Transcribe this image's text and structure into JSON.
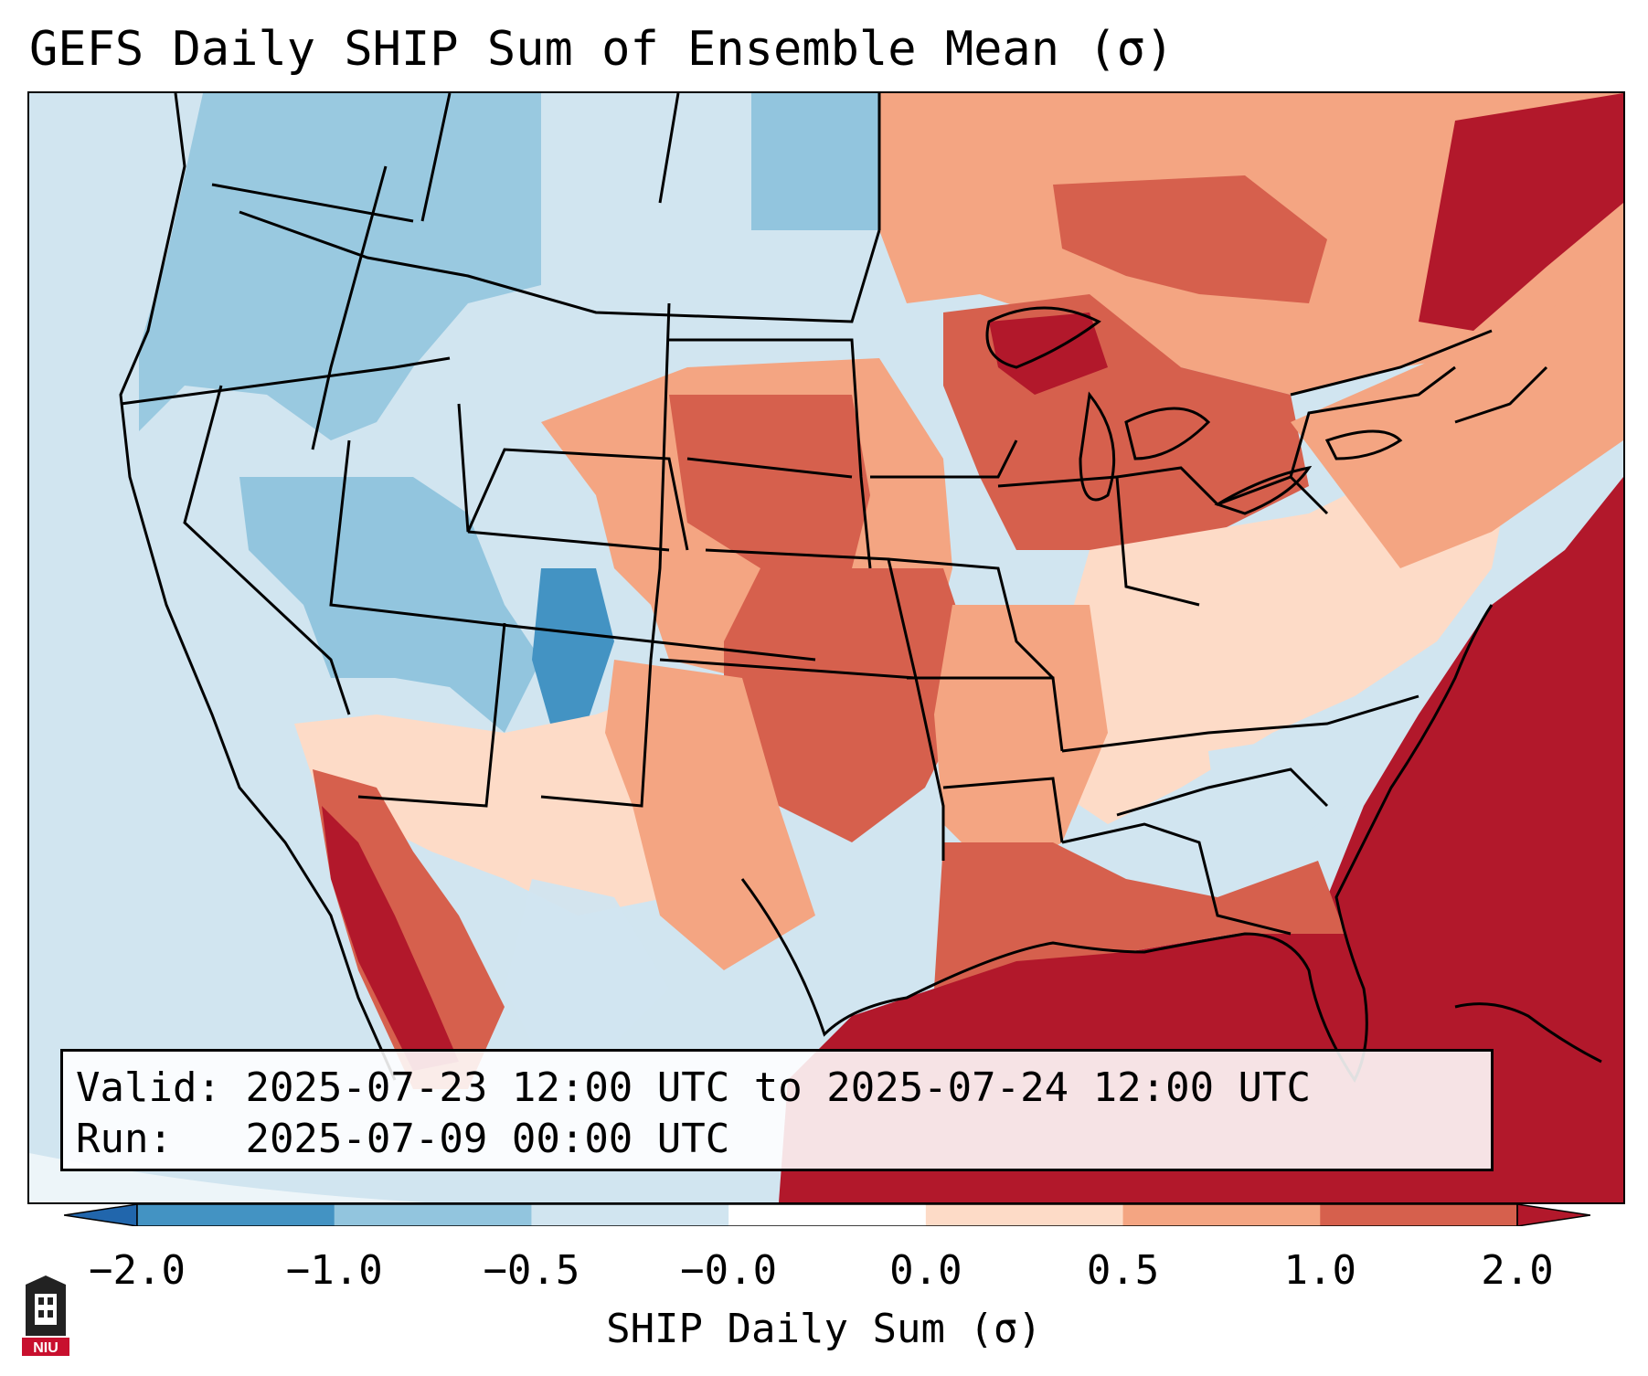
{
  "title": "GEFS Daily SHIP Sum of Ensemble Mean (σ)",
  "info": {
    "valid_label": "Valid:",
    "valid_value": "2025-07-23 12:00 UTC to 2025-07-24 12:00 UTC",
    "run_label": "Run:",
    "run_value": "2025-07-09 00:00 UTC"
  },
  "colorbar": {
    "label": "SHIP Daily Sum (σ)",
    "ticks": [
      "−2.0",
      "−1.0",
      "−0.5",
      "−0.0",
      "0.0",
      "0.5",
      "1.0",
      "2.0"
    ],
    "colors": {
      "under": "#2166ac",
      "bins": [
        "#4393c3",
        "#92c5de",
        "#d1e5f0",
        "#ffffff",
        "#fddbc7",
        "#f4a582",
        "#d6604d"
      ],
      "over": "#b2182b"
    }
  },
  "logo": {
    "text": "NIU",
    "icon": "niu-logo-icon"
  }
}
